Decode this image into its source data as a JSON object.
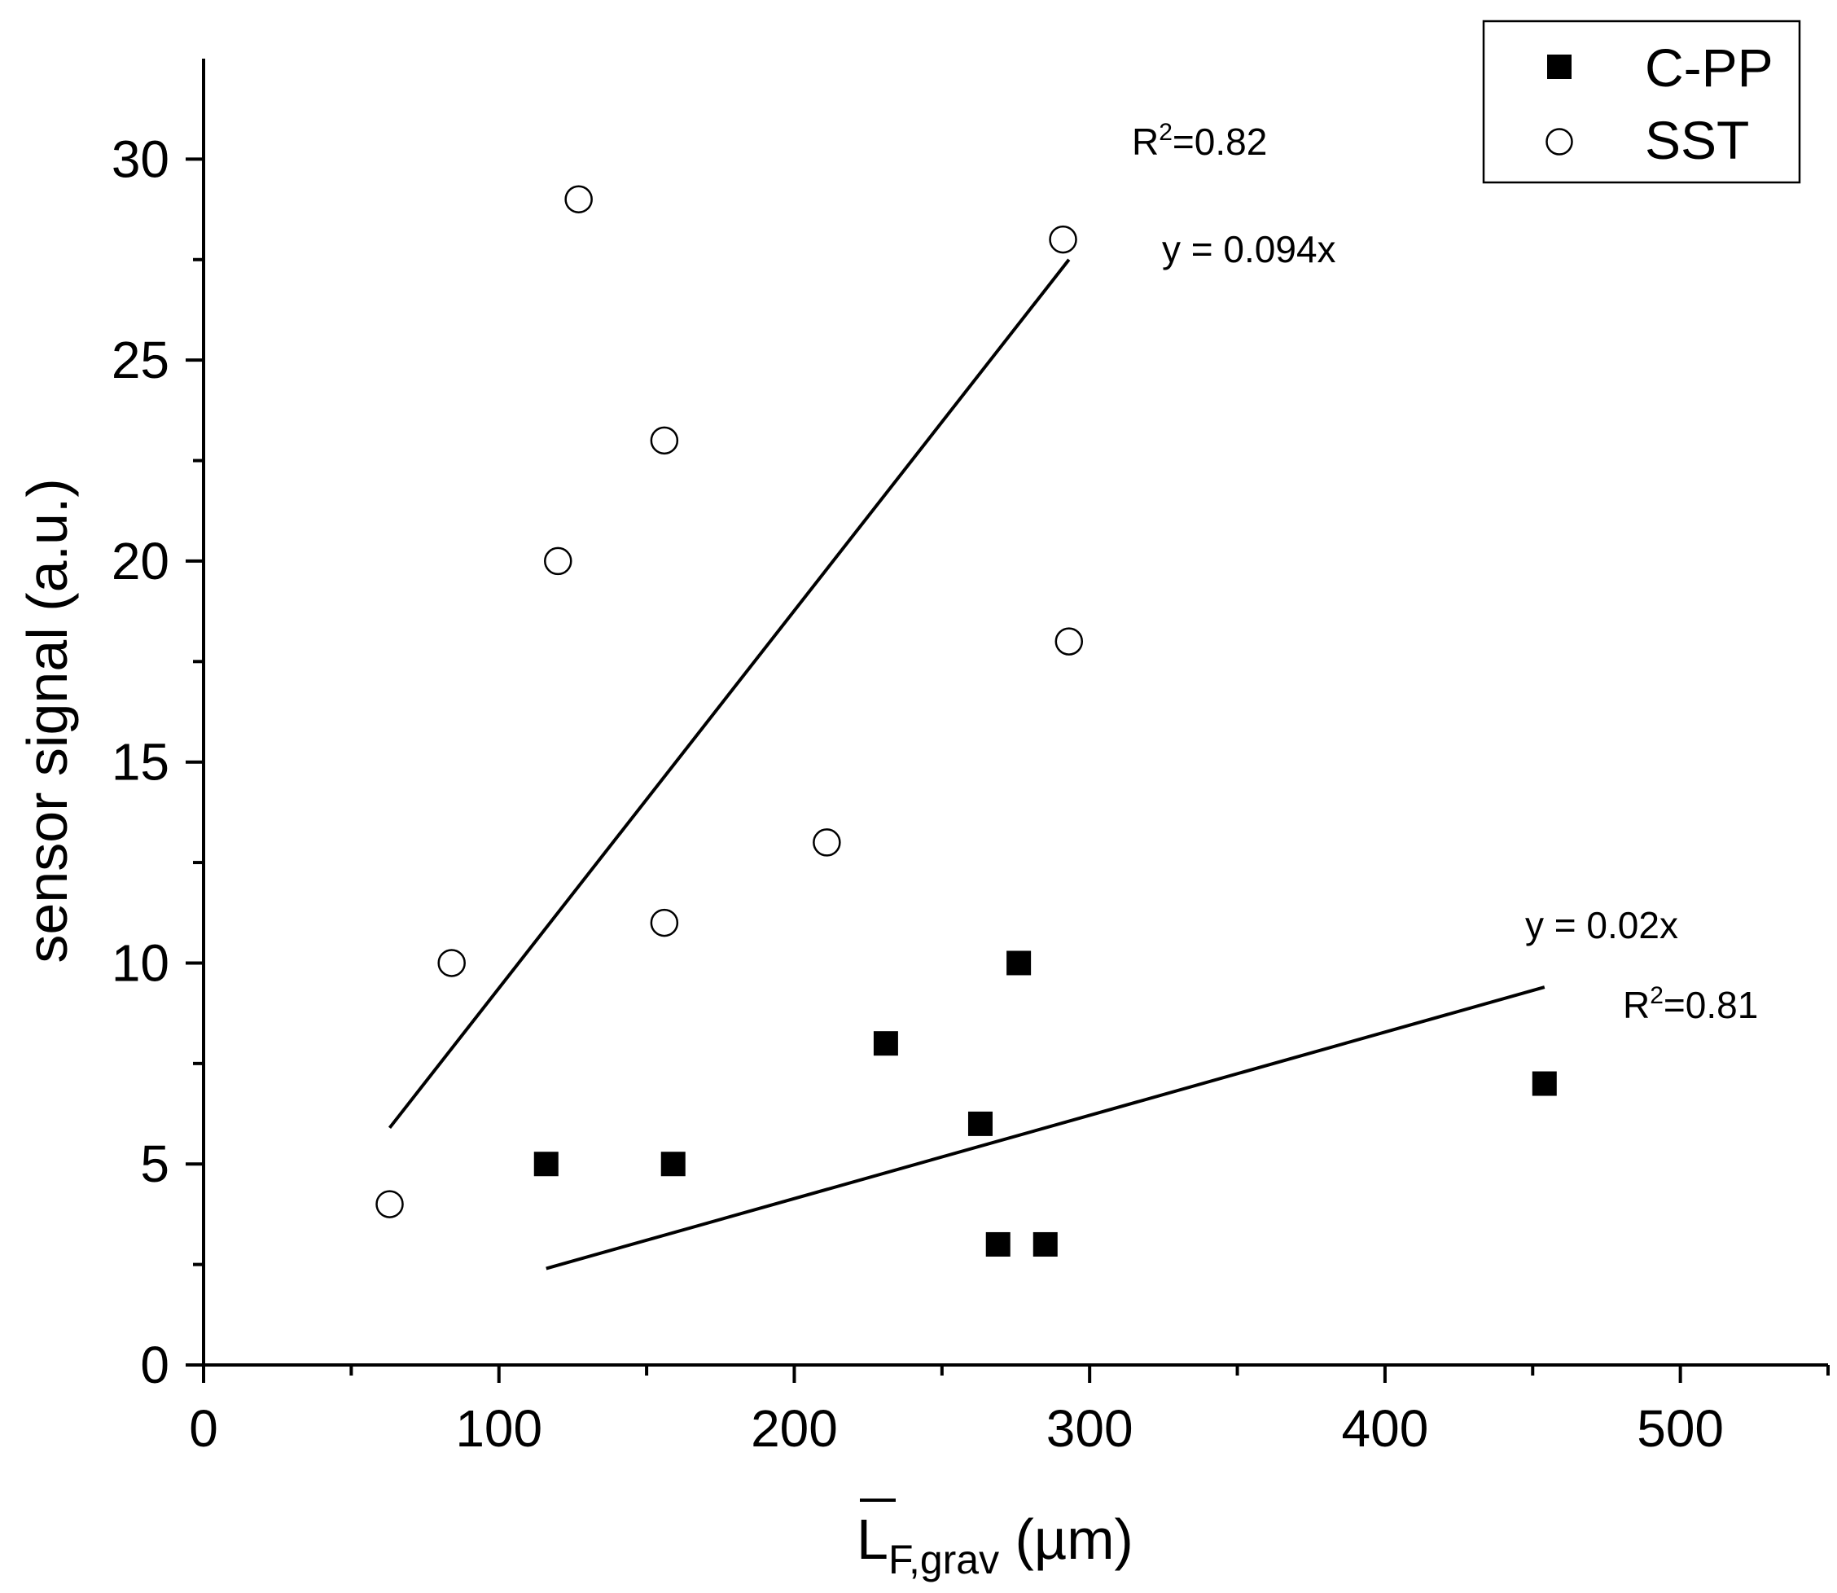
{
  "chart_data": {
    "type": "scatter",
    "title": "",
    "xlabel": {
      "main": "L",
      "sub": "F,grav",
      "unit": " (µm)"
    },
    "ylabel": "sensor signal (a.u.)",
    "xlim": [
      0,
      550
    ],
    "ylim": [
      0,
      32.5
    ],
    "x_ticks": [
      0,
      100,
      200,
      300,
      400,
      500
    ],
    "x_minor_ticks": [
      50,
      150,
      250,
      350,
      450,
      550
    ],
    "y_ticks": [
      0,
      5,
      10,
      15,
      20,
      25,
      30
    ],
    "y_minor_ticks": [
      2.5,
      7.5,
      12.5,
      17.5,
      22.5,
      27.5
    ],
    "grid": false,
    "legend_position": "top-right",
    "series": [
      {
        "name": "C-PP",
        "marker": "filled-square",
        "color": "#000000",
        "points": [
          {
            "x": 116,
            "y": 5
          },
          {
            "x": 159,
            "y": 5
          },
          {
            "x": 231,
            "y": 8
          },
          {
            "x": 263,
            "y": 6
          },
          {
            "x": 269,
            "y": 3
          },
          {
            "x": 276,
            "y": 10
          },
          {
            "x": 285,
            "y": 3
          },
          {
            "x": 454,
            "y": 7
          }
        ],
        "fit": {
          "equation": "y = 0.02x",
          "r2_base": "R",
          "r2_sup": "2",
          "r2_value": "=0.81",
          "x_range": [
            116,
            454
          ],
          "y_range": [
            2.4,
            9.4
          ]
        }
      },
      {
        "name": "SST",
        "marker": "open-circle",
        "color": "#000000",
        "points": [
          {
            "x": 63,
            "y": 4
          },
          {
            "x": 84,
            "y": 10
          },
          {
            "x": 120,
            "y": 20
          },
          {
            "x": 127,
            "y": 29
          },
          {
            "x": 156,
            "y": 23
          },
          {
            "x": 156,
            "y": 11
          },
          {
            "x": 211,
            "y": 13
          },
          {
            "x": 291,
            "y": 28
          },
          {
            "x": 293,
            "y": 18
          }
        ],
        "fit": {
          "equation": "y = 0.094x",
          "r2_base": "R",
          "r2_sup": "2",
          "r2_value": "=0.82",
          "x_range": [
            63,
            293
          ],
          "y_range": [
            5.9,
            27.5
          ]
        }
      }
    ]
  }
}
